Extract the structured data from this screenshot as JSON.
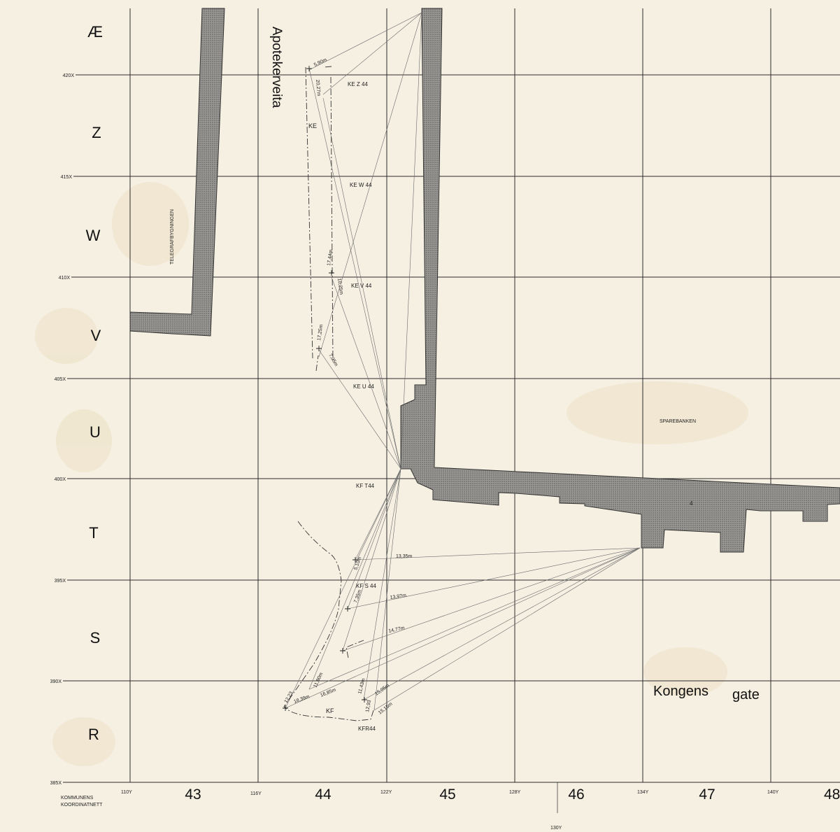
{
  "map": {
    "row_letters": [
      "Æ",
      "Z",
      "W",
      "V",
      "U",
      "T",
      "S",
      "R"
    ],
    "x_coord_labels": [
      "420X",
      "415X",
      "410X",
      "405X",
      "400X",
      "395X",
      "390X",
      "385X"
    ],
    "column_numbers": [
      "43",
      "44",
      "45",
      "46",
      "47",
      "48"
    ],
    "y_coord_labels": [
      "110Y",
      "116Y",
      "122Y",
      "128Y",
      "134Y",
      "140Y"
    ],
    "bottom_y_label": "130Y",
    "grid_system_label": [
      "KOMMUNENS",
      "KOORDINATNETT"
    ],
    "streets": {
      "vertical": "Apotekerveita",
      "horizontal_word1": "Kongens",
      "horizontal_word2": "gate"
    },
    "buildings": {
      "telegraph": "TELEGRAFBYGNINGEN",
      "bank": "SPAREBANKEN",
      "number": "4"
    },
    "points": [
      "KE  Z 44",
      "KE W 44",
      "KE  V 44",
      "KE  U 44",
      "KF T44",
      "KF S 44",
      "KFR44"
    ],
    "areas": [
      "KE",
      "KF"
    ],
    "measurements": [
      "5,90m",
      "20,27m",
      "17,44m",
      "10,25m",
      "17,25m",
      "7,05m",
      "13,35m",
      "5,10m",
      "7,35m",
      "13,97m",
      "14,77m",
      "11,80m",
      "16,85m",
      "11,43m",
      "15,05m",
      "15,15m",
      "12,93",
      "18,39m",
      "12,23"
    ],
    "colors": {
      "paper": "#f6f0e3",
      "ink": "#2a2a2a",
      "building_fill": "#8c8a86"
    }
  }
}
